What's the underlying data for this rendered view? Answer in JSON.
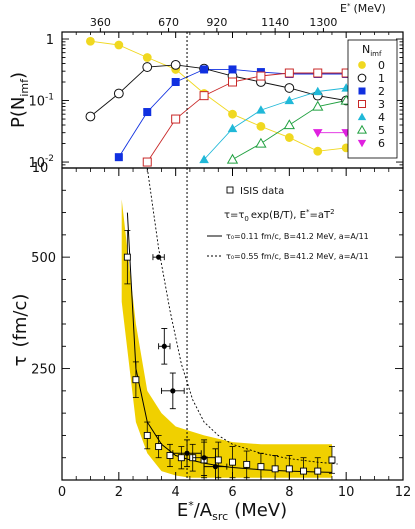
{
  "chart_data": [
    {
      "panel": "top",
      "type": "line",
      "ylabel_main": "P(N",
      "ylabel_sub": "imf",
      "ylabel_end": ")",
      "yscale": "log",
      "ylim": [
        0.008,
        1.3
      ],
      "xlim": [
        0,
        12
      ],
      "yticks": [
        {
          "label": "1",
          "value": 1
        },
        {
          "label": "10",
          "sup": "-1",
          "value": 0.1
        },
        {
          "label": "10",
          "sup": "-2",
          "value": 0.01
        }
      ],
      "top_axis": {
        "label": "E",
        "label_sup": "*",
        "label_unit": "(MeV)",
        "ticks": [
          {
            "label": "360",
            "at": 1.35
          },
          {
            "label": "670",
            "at": 3.75
          },
          {
            "label": "920",
            "at": 5.45
          },
          {
            "label": "1140",
            "at": 7.5
          },
          {
            "label": "1300",
            "at": 9.2
          }
        ]
      },
      "vline_x": 4.4,
      "legend": {
        "title_main": "N",
        "title_sub": "imf",
        "placement": "right",
        "entries": [
          {
            "label": "0",
            "color": "#f0d820",
            "marker": "circle-filled"
          },
          {
            "label": "1",
            "color": "#111111",
            "marker": "circle-open"
          },
          {
            "label": "2",
            "color": "#1030e0",
            "marker": "square-filled"
          },
          {
            "label": "3",
            "color": "#c82828",
            "marker": "square-open"
          },
          {
            "label": "4",
            "color": "#20b8d8",
            "marker": "triangle-filled"
          },
          {
            "label": "5",
            "color": "#20a040",
            "marker": "triangle-open"
          },
          {
            "label": "6",
            "color": "#e020e0",
            "marker": "triangle-down-filled"
          }
        ]
      },
      "series": [
        {
          "name": "0",
          "color": "#f0d820",
          "marker": "circle-filled",
          "x": [
            1.0,
            2.0,
            3.0,
            4.0,
            5.0,
            6.0,
            7.0,
            8.0,
            9.0,
            10.0
          ],
          "y": [
            0.92,
            0.8,
            0.5,
            0.32,
            0.13,
            0.06,
            0.038,
            0.025,
            0.015,
            0.017
          ]
        },
        {
          "name": "1",
          "color": "#111111",
          "marker": "circle-open",
          "x": [
            1.0,
            2.0,
            3.0,
            4.0,
            5.0,
            6.0,
            7.0,
            8.0,
            9.0,
            10.0
          ],
          "y": [
            0.055,
            0.13,
            0.35,
            0.38,
            0.33,
            0.25,
            0.2,
            0.16,
            0.12,
            0.1
          ]
        },
        {
          "name": "2",
          "color": "#1030e0",
          "marker": "square-filled",
          "x": [
            2.0,
            3.0,
            4.0,
            5.0,
            6.0,
            7.0,
            8.0,
            9.0,
            10.0
          ],
          "y": [
            0.012,
            0.065,
            0.2,
            0.32,
            0.32,
            0.29,
            0.27,
            0.27,
            0.27
          ]
        },
        {
          "name": "3",
          "color": "#c82828",
          "marker": "square-open",
          "x": [
            3.0,
            4.0,
            5.0,
            6.0,
            7.0,
            8.0,
            9.0,
            10.0
          ],
          "y": [
            0.01,
            0.05,
            0.12,
            0.2,
            0.25,
            0.28,
            0.28,
            0.28
          ]
        },
        {
          "name": "4",
          "color": "#20b8d8",
          "marker": "triangle-filled",
          "x": [
            5.0,
            6.0,
            7.0,
            8.0,
            9.0,
            10.0
          ],
          "y": [
            0.011,
            0.035,
            0.07,
            0.1,
            0.14,
            0.16
          ]
        },
        {
          "name": "5",
          "color": "#20a040",
          "marker": "triangle-open",
          "x": [
            6.0,
            7.0,
            8.0,
            9.0,
            10.0
          ],
          "y": [
            0.011,
            0.02,
            0.04,
            0.08,
            0.1
          ]
        },
        {
          "name": "6",
          "color": "#e020e0",
          "marker": "triangle-down-filled",
          "x": [
            9.0,
            10.0
          ],
          "y": [
            0.03,
            0.03
          ]
        }
      ]
    },
    {
      "panel": "bottom",
      "type": "scatter",
      "xlabel_main": "E",
      "xlabel_sup": "*",
      "xlabel_mid": "/A",
      "xlabel_sub": "src",
      "xlabel_end": "(MeV)",
      "ylabel_main": "τ",
      "ylabel_end": "(fm/c)",
      "xlim": [
        0,
        12
      ],
      "ylim": [
        0,
        700
      ],
      "xticks": [
        0,
        2,
        4,
        6,
        8,
        10,
        12
      ],
      "yticks": [
        250,
        500
      ],
      "top_label": "10",
      "vline_x": 4.4,
      "legend": {
        "isis_label": "ISIS data",
        "formula_lead": "τ=τ",
        "formula_sub": "0",
        "formula_mid": "exp(B/T), E",
        "formula_sup": "*",
        "formula_end": "=aT",
        "formula_pow": "2",
        "solid_label": "τ₀=0.11 fm/c, B=41.2 MeV, a=A/11",
        "dashed_label": "τ₀=0.55 fm/c, B=41.2 MeV, a=A/11"
      },
      "band": {
        "color": "#f0d000",
        "x": [
          2.1,
          2.6,
          3.0,
          3.5,
          4.0,
          4.5,
          5.0,
          6.0,
          7.0,
          8.0,
          9.5
        ],
        "lower": [
          400,
          130,
          60,
          20,
          10,
          5,
          5,
          5,
          5,
          5,
          5
        ],
        "upper": [
          630,
          350,
          200,
          150,
          120,
          110,
          100,
          85,
          80,
          80,
          80
        ]
      },
      "isis_points": {
        "x": [
          2.3,
          2.6,
          3.0,
          3.4,
          3.8,
          4.2,
          4.6,
          5.0,
          5.5,
          6.0,
          6.5,
          7.0,
          7.5,
          8.0,
          8.5,
          9.0,
          9.5
        ],
        "y": [
          500,
          225,
          100,
          75,
          55,
          50,
          50,
          45,
          45,
          40,
          35,
          30,
          25,
          25,
          20,
          20,
          45
        ],
        "err": [
          60,
          40,
          30,
          25,
          25,
          25,
          30,
          40,
          40,
          35,
          30,
          30,
          30,
          30,
          30,
          30,
          30
        ]
      },
      "filled_points": {
        "x": [
          3.4,
          3.6,
          3.9,
          4.4,
          5.0,
          5.4
        ],
        "y": [
          500,
          300,
          200,
          60,
          50,
          30
        ],
        "xerr": [
          0.2,
          0.2,
          0.4,
          0.5,
          0.4,
          0.4
        ],
        "yerr": [
          0,
          40,
          40,
          30,
          40,
          40
        ]
      },
      "curve_solid": {
        "x": [
          2.3,
          2.6,
          3.0,
          3.5,
          4.0,
          4.5,
          5.0,
          5.5,
          6.0,
          7.0,
          8.0,
          9.0,
          9.5
        ],
        "y": [
          600,
          250,
          130,
          80,
          55,
          45,
          38,
          32,
          28,
          23,
          20,
          18,
          17
        ]
      },
      "curve_dashed": {
        "x": [
          3.0,
          3.4,
          3.8,
          4.2,
          4.6,
          5.0,
          5.5,
          6.0,
          7.0,
          8.0,
          9.0,
          9.7
        ],
        "y": [
          700,
          520,
          380,
          260,
          180,
          130,
          100,
          80,
          60,
          48,
          40,
          36
        ]
      }
    }
  ]
}
